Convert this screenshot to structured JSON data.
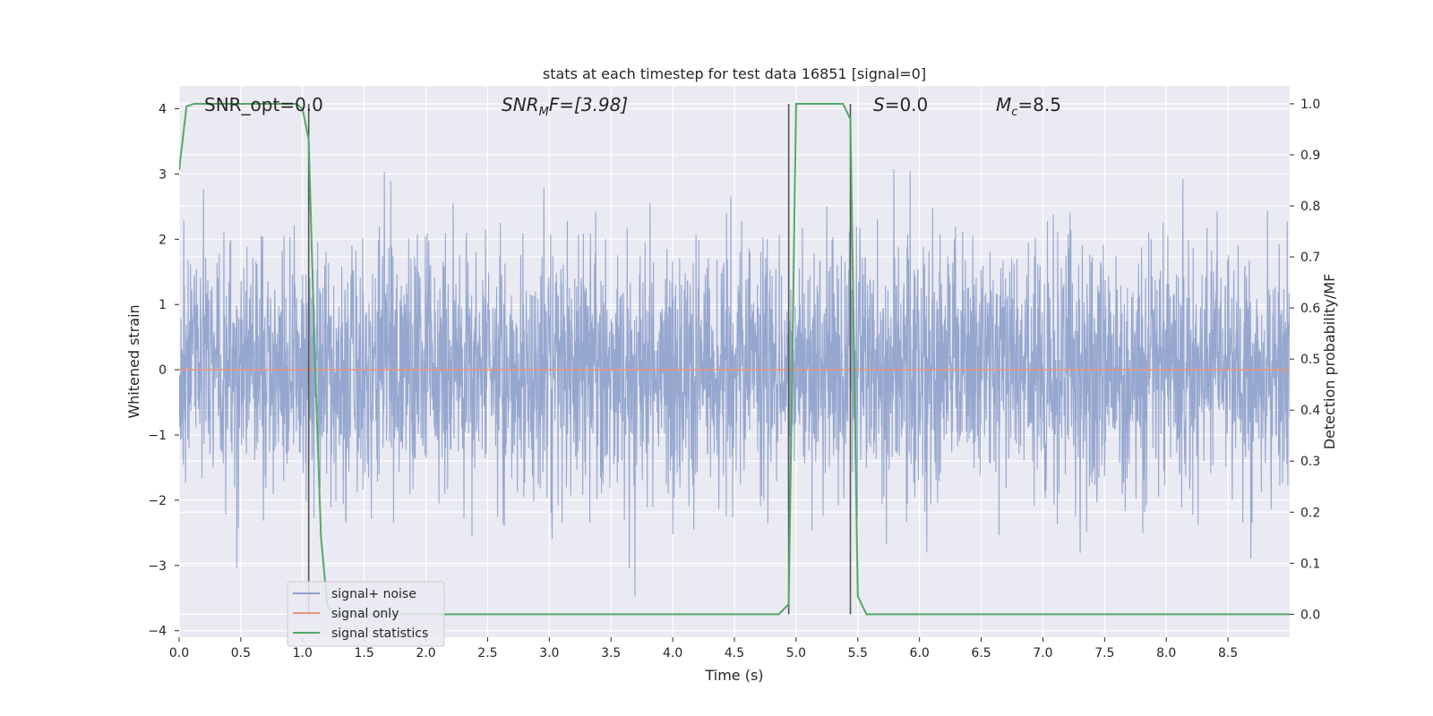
{
  "chart_data": {
    "type": "line",
    "title": "stats at each timestep for test data 16851 [signal=0]",
    "xlabel": "Time (s)",
    "ylabel": "Whitened strain",
    "y2label": "Detection probability/MF",
    "xlim": [
      0.0,
      9.0
    ],
    "ylim": [
      -4.1,
      4.35
    ],
    "y2lim": [
      -0.045,
      1.035
    ],
    "xticks": [
      "0.0",
      "0.5",
      "1.0",
      "1.5",
      "2.0",
      "2.5",
      "3.0",
      "3.5",
      "4.0",
      "4.5",
      "5.0",
      "5.5",
      "6.0",
      "6.5",
      "7.0",
      "7.5",
      "8.0",
      "8.5"
    ],
    "yticks": [
      "4",
      "3",
      "2",
      "1",
      "0",
      "−1",
      "−2",
      "−3",
      "−4"
    ],
    "y2ticks": [
      "1.0",
      "0.9",
      "0.8",
      "0.7",
      "0.6",
      "0.5",
      "0.4",
      "0.3",
      "0.2",
      "0.1",
      "0.0"
    ],
    "grid": true,
    "legend_location": "lower-left",
    "annotations": {
      "snr_opt": "SNR_opt=0.0",
      "snr_mf_main": "SNR",
      "snr_mf_sub": "M",
      "snr_mf_rest": "F=[3.98]",
      "s_main": "S",
      "s_rest": "=0.0",
      "mc_main": "M",
      "mc_sub": "c",
      "mc_rest": "=8.5"
    },
    "vertical_lines": [
      1.05,
      4.94,
      5.44
    ],
    "series": [
      {
        "name": "signal+ noise",
        "color": "#8da0cb",
        "description_kind": "noise",
        "duration": 9.0,
        "noise_seed": 16851
      },
      {
        "name": "signal only",
        "color": "#e8967a",
        "y_constant": 0.0
      },
      {
        "name": "signal statistics",
        "color": "#55a868",
        "axis": "right",
        "x": [
          0.0,
          0.06,
          0.12,
          0.25,
          0.5,
          0.75,
          0.95,
          1.0,
          1.05,
          1.1,
          1.15,
          1.2,
          1.25,
          2.0,
          3.0,
          4.0,
          4.86,
          4.94,
          5.0,
          5.1,
          5.3,
          5.38,
          5.44,
          5.5,
          5.57,
          6.0,
          7.0,
          8.0,
          9.0
        ],
        "y": [
          0.87,
          0.995,
          1.0,
          1.0,
          1.0,
          1.0,
          1.0,
          0.99,
          0.93,
          0.5,
          0.15,
          0.02,
          0.0,
          0.0,
          0.0,
          0.0,
          0.0,
          0.02,
          1.0,
          1.0,
          1.0,
          1.0,
          0.97,
          0.035,
          0.0,
          0.0,
          0.0,
          0.0,
          0.0
        ]
      }
    ]
  }
}
